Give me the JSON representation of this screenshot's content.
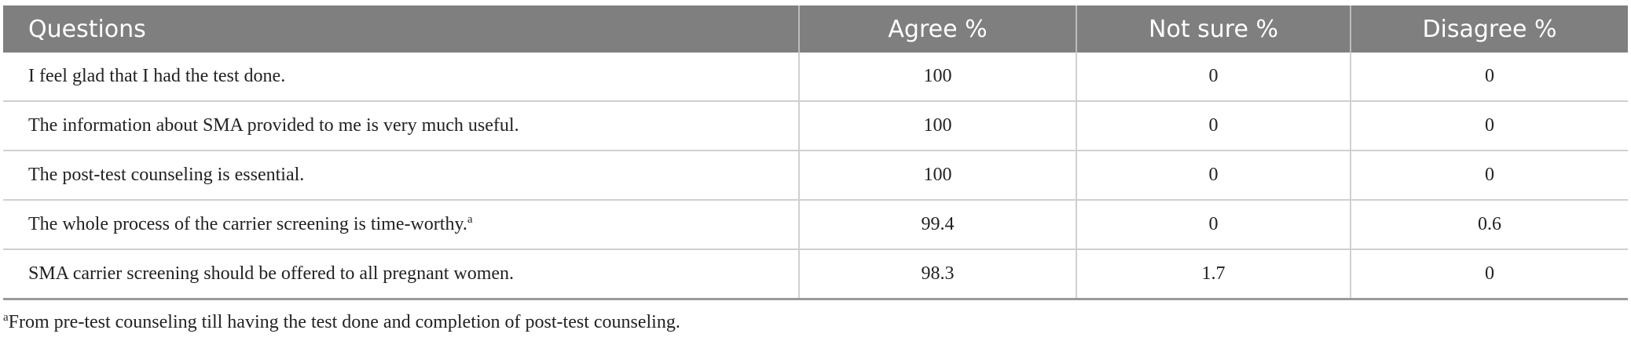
{
  "table": {
    "header": [
      "Questions",
      "Agree %",
      "Not sure %",
      "Disagree %"
    ],
    "rows": [
      {
        "question": "I feel glad that I had the test done.",
        "values": [
          "100",
          "0",
          "0"
        ]
      },
      {
        "question": "The information about SMA provided to me is very much useful.",
        "values": [
          "100",
          "0",
          "0"
        ]
      },
      {
        "question": "The post-test counseling is essential.",
        "values": [
          "100",
          "0",
          "0"
        ]
      },
      {
        "question": "The whole process of the carrier screening is time-worthy.",
        "note": "a",
        "values": [
          "99.4",
          "0",
          "0.6"
        ]
      },
      {
        "question": "SMA carrier screening should be offered to all pregnant women.",
        "values": [
          "98.3",
          "1.7",
          "0"
        ]
      }
    ]
  },
  "footnote": {
    "marker": "a",
    "text": "From pre-test counseling till having the test done and completion of post-test counseling."
  }
}
